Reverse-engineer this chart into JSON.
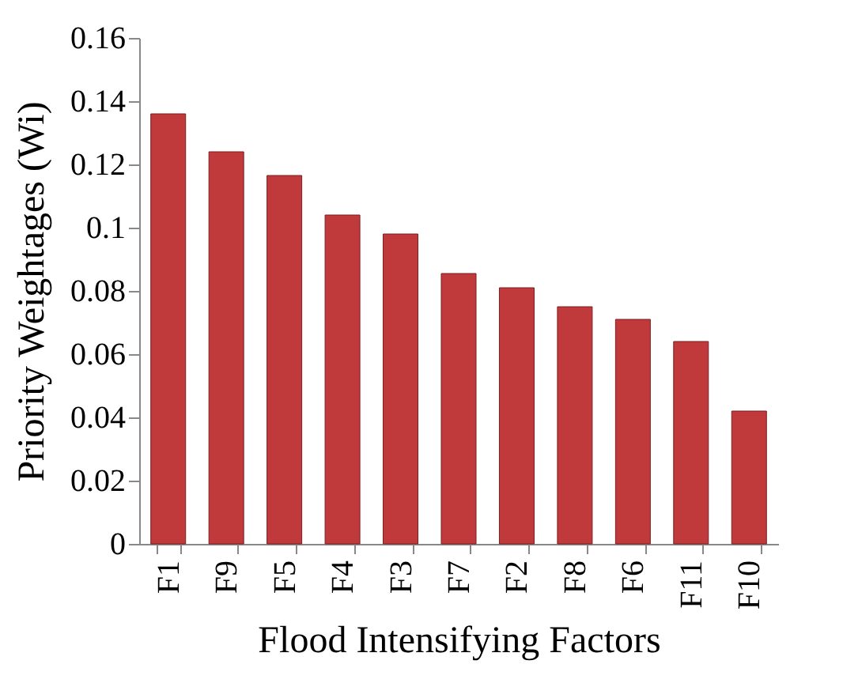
{
  "chart_data": {
    "type": "bar",
    "xlabel": "Flood Intensifying Factors",
    "ylabel": "Priority Weightages (Wi)",
    "categories": [
      "F1",
      "F9",
      "F5",
      "F4",
      "F3",
      "F7",
      "F2",
      "F8",
      "F6",
      "F11",
      "F10"
    ],
    "series": [
      {
        "color": "#c0393b",
        "values": [
          0.136,
          0.124,
          0.1165,
          0.104,
          0.098,
          0.0855,
          0.081,
          0.075,
          0.071,
          0.064,
          0.042
        ]
      }
    ],
    "ylim": [
      0,
      0.16
    ],
    "yticks": [
      0,
      0.02,
      0.04,
      0.06,
      0.08,
      0.1,
      0.12,
      0.14,
      0.16
    ],
    "grid": false,
    "legend": false
  }
}
